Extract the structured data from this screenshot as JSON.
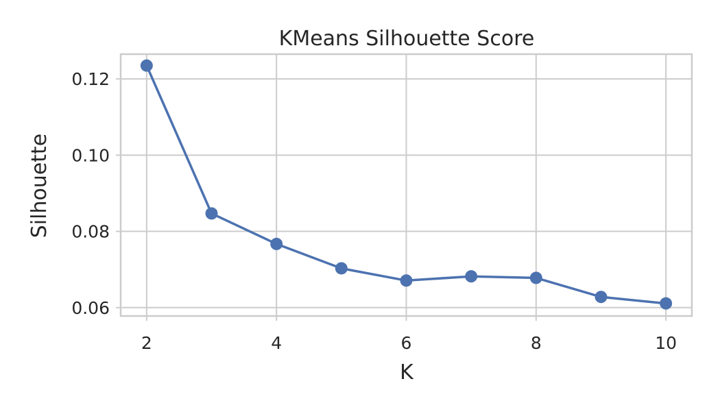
{
  "chart_data": {
    "type": "line",
    "title": "KMeans Silhouette Score",
    "xlabel": "K",
    "ylabel": "Silhouette",
    "xlim": [
      1.6,
      10.4
    ],
    "ylim": [
      0.0578,
      0.1265
    ],
    "x_ticks": [
      2,
      4,
      6,
      8,
      10
    ],
    "y_ticks": [
      0.06,
      0.08,
      0.1,
      0.12
    ],
    "y_tick_labels": [
      "0.06",
      "0.08",
      "0.10",
      "0.12"
    ],
    "x_tick_labels": [
      "2",
      "4",
      "6",
      "8",
      "10"
    ],
    "grid": true,
    "series": [
      {
        "color": "#4c72b0",
        "marker": "circle",
        "x": [
          2,
          3,
          4,
          5,
          6,
          7,
          8,
          9,
          10
        ],
        "y": [
          0.1235,
          0.0847,
          0.0767,
          0.0703,
          0.0671,
          0.0682,
          0.0678,
          0.0628,
          0.0611
        ]
      }
    ]
  }
}
